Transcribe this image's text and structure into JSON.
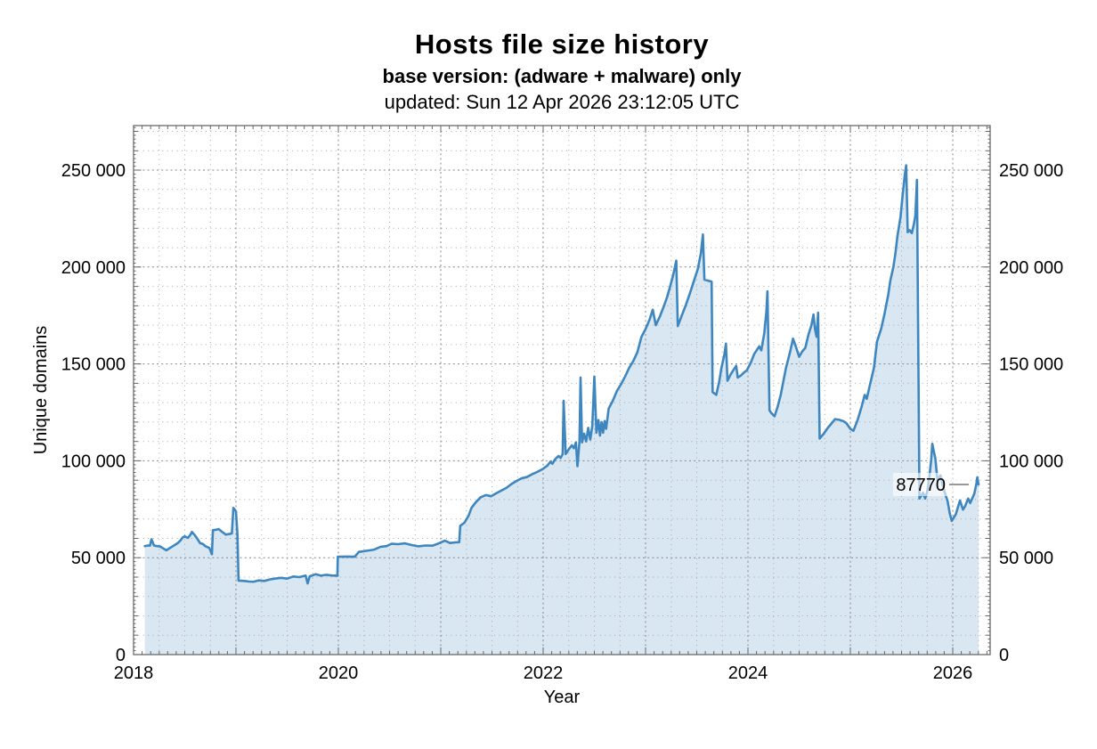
{
  "header": {
    "title": "Hosts file size history",
    "subtitle": "base version: (adware + malware) only",
    "updated": "updated: Sun 12 Apr 2026 23:12:05 UTC"
  },
  "chart_data": {
    "type": "area",
    "title": "Hosts file size history",
    "subtitle": "base version: (adware + malware) only",
    "updated": "updated: Sun 12 Apr 2026 23:12:05 UTC",
    "xlabel": "Year",
    "ylabel": "Unique domains",
    "xlim": [
      2018,
      2026.365
    ],
    "ylim": [
      0,
      273000
    ],
    "grid": true,
    "legend_position": "none",
    "x_minor_step": 0.25,
    "y_minor_step": 10000,
    "x_major_ticks": [
      2018,
      2019,
      2020,
      2021,
      2022,
      2023,
      2024,
      2025,
      2026
    ],
    "x_labeled_ticks": [
      {
        "value": 2018,
        "label": "2018"
      },
      {
        "value": 2020,
        "label": "2020"
      },
      {
        "value": 2022,
        "label": "2022"
      },
      {
        "value": 2024,
        "label": "2024"
      },
      {
        "value": 2026,
        "label": "2026"
      }
    ],
    "y_labeled_ticks": [
      {
        "value": 0,
        "label": "0"
      },
      {
        "value": 50000,
        "label": "50 000"
      },
      {
        "value": 100000,
        "label": "100 000"
      },
      {
        "value": 150000,
        "label": "150 000"
      },
      {
        "value": 200000,
        "label": "200 000"
      },
      {
        "value": 250000,
        "label": "250 000"
      }
    ],
    "annotation": {
      "label": "87770",
      "x": 2026.252,
      "y": 87770
    },
    "colors": {
      "line": "#3e86c0",
      "fill": "#d8e7f1",
      "grid_major": "#878787",
      "grid_minor": "#a8a8a8",
      "border": "#6a6a6a",
      "tick": "#666666",
      "annotation_pointer": "#999999",
      "text": "#000000"
    },
    "series": [
      {
        "name": "unique domains",
        "points": [
          [
            2018.11,
            56000
          ],
          [
            2018.14,
            56300
          ],
          [
            2018.16,
            56200
          ],
          [
            2018.175,
            59500
          ],
          [
            2018.2,
            56300
          ],
          [
            2018.23,
            56000
          ],
          [
            2018.26,
            55800
          ],
          [
            2018.29,
            54800
          ],
          [
            2018.32,
            53800
          ],
          [
            2018.37,
            55500
          ],
          [
            2018.43,
            57500
          ],
          [
            2018.46,
            59000
          ],
          [
            2018.48,
            60500
          ],
          [
            2018.5,
            61000
          ],
          [
            2018.53,
            60200
          ],
          [
            2018.55,
            61500
          ],
          [
            2018.57,
            63300
          ],
          [
            2018.6,
            61500
          ],
          [
            2018.62,
            60000
          ],
          [
            2018.65,
            57500
          ],
          [
            2018.68,
            57000
          ],
          [
            2018.7,
            56000
          ],
          [
            2018.74,
            55000
          ],
          [
            2018.765,
            51800
          ],
          [
            2018.775,
            64200
          ],
          [
            2018.81,
            64500
          ],
          [
            2018.83,
            64800
          ],
          [
            2018.86,
            63500
          ],
          [
            2018.88,
            62800
          ],
          [
            2018.9,
            61900
          ],
          [
            2018.93,
            62200
          ],
          [
            2018.96,
            62500
          ],
          [
            2018.975,
            75700
          ],
          [
            2019.0,
            74000
          ],
          [
            2019.015,
            62000
          ],
          [
            2019.025,
            38200
          ],
          [
            2019.08,
            38000
          ],
          [
            2019.13,
            37700
          ],
          [
            2019.17,
            37600
          ],
          [
            2019.22,
            38300
          ],
          [
            2019.28,
            38000
          ],
          [
            2019.33,
            38800
          ],
          [
            2019.38,
            39200
          ],
          [
            2019.44,
            39600
          ],
          [
            2019.5,
            39200
          ],
          [
            2019.56,
            40300
          ],
          [
            2019.62,
            40000
          ],
          [
            2019.68,
            40800
          ],
          [
            2019.7,
            36700
          ],
          [
            2019.72,
            40400
          ],
          [
            2019.78,
            41500
          ],
          [
            2019.83,
            40700
          ],
          [
            2019.88,
            41200
          ],
          [
            2019.94,
            40800
          ],
          [
            2019.99,
            40700
          ],
          [
            2019.995,
            50500
          ],
          [
            2020.08,
            50600
          ],
          [
            2020.16,
            50500
          ],
          [
            2020.2,
            53000
          ],
          [
            2020.28,
            53600
          ],
          [
            2020.35,
            54200
          ],
          [
            2020.41,
            55600
          ],
          [
            2020.47,
            56000
          ],
          [
            2020.52,
            57200
          ],
          [
            2020.58,
            57000
          ],
          [
            2020.65,
            57400
          ],
          [
            2020.72,
            56500
          ],
          [
            2020.78,
            55900
          ],
          [
            2020.85,
            56300
          ],
          [
            2020.92,
            56200
          ],
          [
            2020.98,
            57400
          ],
          [
            2021.04,
            58800
          ],
          [
            2021.09,
            57600
          ],
          [
            2021.14,
            57900
          ],
          [
            2021.18,
            58000
          ],
          [
            2021.19,
            66500
          ],
          [
            2021.23,
            68000
          ],
          [
            2021.27,
            71500
          ],
          [
            2021.3,
            75700
          ],
          [
            2021.34,
            78500
          ],
          [
            2021.39,
            81200
          ],
          [
            2021.44,
            82300
          ],
          [
            2021.49,
            81700
          ],
          [
            2021.54,
            83200
          ],
          [
            2021.59,
            84600
          ],
          [
            2021.64,
            86000
          ],
          [
            2021.69,
            88000
          ],
          [
            2021.74,
            89600
          ],
          [
            2021.79,
            91000
          ],
          [
            2021.84,
            91600
          ],
          [
            2021.89,
            93000
          ],
          [
            2021.94,
            94200
          ],
          [
            2021.99,
            95600
          ],
          [
            2022.04,
            97500
          ],
          [
            2022.07,
            99500
          ],
          [
            2022.09,
            98500
          ],
          [
            2022.12,
            101000
          ],
          [
            2022.15,
            102500
          ],
          [
            2022.17,
            101500
          ],
          [
            2022.19,
            103500
          ],
          [
            2022.2,
            131000
          ],
          [
            2022.22,
            103500
          ],
          [
            2022.25,
            106000
          ],
          [
            2022.28,
            108000
          ],
          [
            2022.3,
            106500
          ],
          [
            2022.32,
            109500
          ],
          [
            2022.335,
            97200
          ],
          [
            2022.355,
            110000
          ],
          [
            2022.365,
            143000
          ],
          [
            2022.38,
            109500
          ],
          [
            2022.4,
            114000
          ],
          [
            2022.42,
            110000
          ],
          [
            2022.44,
            117000
          ],
          [
            2022.46,
            111000
          ],
          [
            2022.48,
            118000
          ],
          [
            2022.5,
            143500
          ],
          [
            2022.52,
            114500
          ],
          [
            2022.54,
            121000
          ],
          [
            2022.555,
            113000
          ],
          [
            2022.57,
            120000
          ],
          [
            2022.585,
            114500
          ],
          [
            2022.6,
            120500
          ],
          [
            2022.615,
            116500
          ],
          [
            2022.64,
            127000
          ],
          [
            2022.68,
            131000
          ],
          [
            2022.72,
            136000
          ],
          [
            2022.76,
            139500
          ],
          [
            2022.8,
            143500
          ],
          [
            2022.84,
            148000
          ],
          [
            2022.88,
            151500
          ],
          [
            2022.92,
            156000
          ],
          [
            2022.96,
            164000
          ],
          [
            2023.0,
            168000
          ],
          [
            2023.04,
            173000
          ],
          [
            2023.07,
            178000
          ],
          [
            2023.1,
            170000
          ],
          [
            2023.14,
            174500
          ],
          [
            2023.18,
            180000
          ],
          [
            2023.21,
            184500
          ],
          [
            2023.24,
            190000
          ],
          [
            2023.27,
            196000
          ],
          [
            2023.3,
            203300
          ],
          [
            2023.315,
            169500
          ],
          [
            2023.35,
            174500
          ],
          [
            2023.39,
            180000
          ],
          [
            2023.43,
            186000
          ],
          [
            2023.47,
            192500
          ],
          [
            2023.51,
            199000
          ],
          [
            2023.54,
            207000
          ],
          [
            2023.56,
            216800
          ],
          [
            2023.575,
            193500
          ],
          [
            2023.61,
            193000
          ],
          [
            2023.645,
            192500
          ],
          [
            2023.655,
            135500
          ],
          [
            2023.69,
            134000
          ],
          [
            2023.72,
            141000
          ],
          [
            2023.74,
            147700
          ],
          [
            2023.77,
            155000
          ],
          [
            2023.785,
            160500
          ],
          [
            2023.8,
            141300
          ],
          [
            2023.83,
            144500
          ],
          [
            2023.86,
            147000
          ],
          [
            2023.885,
            149000
          ],
          [
            2023.9,
            143000
          ],
          [
            2023.93,
            144000
          ],
          [
            2023.96,
            145500
          ],
          [
            2023.99,
            146800
          ],
          [
            2024.03,
            151000
          ],
          [
            2024.06,
            155000
          ],
          [
            2024.09,
            157500
          ],
          [
            2024.11,
            159000
          ],
          [
            2024.13,
            157000
          ],
          [
            2024.16,
            166000
          ],
          [
            2024.18,
            177000
          ],
          [
            2024.19,
            187500
          ],
          [
            2024.21,
            126000
          ],
          [
            2024.23,
            124500
          ],
          [
            2024.26,
            123000
          ],
          [
            2024.29,
            128000
          ],
          [
            2024.32,
            134000
          ],
          [
            2024.37,
            147700
          ],
          [
            2024.41,
            156000
          ],
          [
            2024.44,
            163000
          ],
          [
            2024.47,
            158500
          ],
          [
            2024.5,
            153700
          ],
          [
            2024.53,
            156500
          ],
          [
            2024.56,
            158300
          ],
          [
            2024.59,
            165000
          ],
          [
            2024.62,
            170000
          ],
          [
            2024.64,
            175500
          ],
          [
            2024.655,
            168000
          ],
          [
            2024.67,
            164000
          ],
          [
            2024.685,
            176500
          ],
          [
            2024.7,
            111500
          ],
          [
            2024.74,
            114000
          ],
          [
            2024.78,
            117000
          ],
          [
            2024.82,
            119500
          ],
          [
            2024.85,
            121500
          ],
          [
            2024.89,
            121200
          ],
          [
            2024.93,
            120500
          ],
          [
            2024.96,
            119500
          ],
          [
            2025.0,
            116500
          ],
          [
            2025.03,
            115500
          ],
          [
            2025.07,
            121000
          ],
          [
            2025.11,
            128000
          ],
          [
            2025.14,
            134000
          ],
          [
            2025.16,
            132000
          ],
          [
            2025.19,
            139000
          ],
          [
            2025.23,
            148000
          ],
          [
            2025.26,
            161500
          ],
          [
            2025.3,
            168000
          ],
          [
            2025.33,
            175000
          ],
          [
            2025.37,
            185800
          ],
          [
            2025.39,
            193000
          ],
          [
            2025.42,
            200000
          ],
          [
            2025.44,
            207000
          ],
          [
            2025.46,
            216000
          ],
          [
            2025.49,
            226000
          ],
          [
            2025.51,
            237000
          ],
          [
            2025.53,
            247000
          ],
          [
            2025.545,
            252500
          ],
          [
            2025.56,
            218000
          ],
          [
            2025.58,
            219000
          ],
          [
            2025.6,
            217500
          ],
          [
            2025.62,
            222000
          ],
          [
            2025.635,
            226500
          ],
          [
            2025.65,
            245000
          ],
          [
            2025.675,
            80500
          ],
          [
            2025.71,
            83500
          ],
          [
            2025.73,
            80500
          ],
          [
            2025.75,
            84000
          ],
          [
            2025.77,
            91000
          ],
          [
            2025.79,
            101000
          ],
          [
            2025.8,
            108800
          ],
          [
            2025.83,
            101000
          ],
          [
            2025.85,
            90000
          ],
          [
            2025.88,
            92500
          ],
          [
            2025.9,
            88000
          ],
          [
            2025.92,
            84000
          ],
          [
            2025.95,
            79000
          ],
          [
            2025.97,
            73000
          ],
          [
            2025.99,
            69000
          ],
          [
            2026.03,
            72500
          ],
          [
            2026.05,
            76000
          ],
          [
            2026.07,
            79500
          ],
          [
            2026.1,
            74800
          ],
          [
            2026.12,
            76500
          ],
          [
            2026.15,
            80500
          ],
          [
            2026.17,
            78200
          ],
          [
            2026.21,
            83000
          ],
          [
            2026.23,
            88000
          ],
          [
            2026.24,
            91500
          ],
          [
            2026.252,
            87770
          ]
        ]
      }
    ]
  }
}
